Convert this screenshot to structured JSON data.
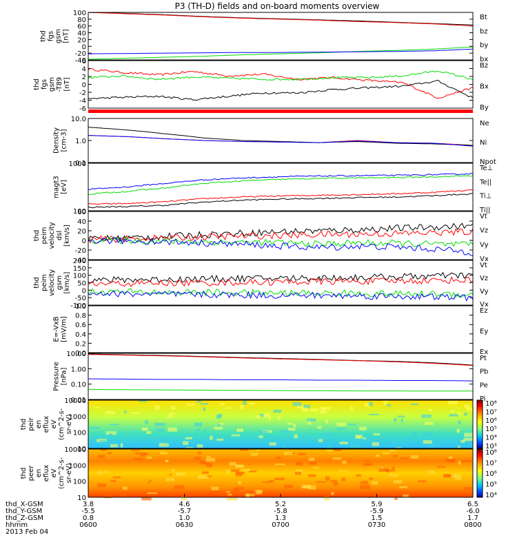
{
  "title": "P3 (TH-D) fields and on-board moments overview",
  "colors": {
    "black": "#000000",
    "red": "#ff0000",
    "green": "#00dd00",
    "blue": "#0000ff"
  },
  "chart_data": [
    {
      "type": "line",
      "ylabel": [
        "thd",
        "fgs",
        "gsm",
        "[nT]"
      ],
      "ylim": [
        -40,
        100
      ],
      "ticks": [
        "100",
        "80",
        "60",
        "40",
        "20",
        "0",
        "-20",
        "-40"
      ],
      "series": [
        {
          "name": "Bt",
          "color": "#000000",
          "values": [
            100,
            97,
            93,
            88,
            84,
            81,
            78,
            75,
            71,
            67,
            63
          ]
        },
        {
          "name": "bz",
          "color": "#ff0000",
          "values": [
            100,
            96,
            92,
            87,
            83,
            80,
            77,
            73,
            70,
            66,
            60
          ]
        },
        {
          "name": "by",
          "color": "#00dd00",
          "values": [
            -38,
            -35,
            -32,
            -29,
            -25,
            -22,
            -19,
            -15,
            -12,
            -8,
            -2
          ]
        },
        {
          "name": "bx",
          "color": "#0000ff",
          "values": [
            -22,
            -21,
            -20,
            -19,
            -18,
            -18,
            -17,
            -16,
            -15,
            -13,
            -8
          ]
        }
      ]
    },
    {
      "type": "line",
      "ylabel": [
        "thd",
        "fgs",
        "gsm",
        "-T89",
        "[nT]"
      ],
      "ylim": [
        -7,
        7
      ],
      "ticks": [
        "6",
        "4",
        "2",
        "0",
        "-2",
        "-4",
        "-6"
      ],
      "series": [
        {
          "name": "Bz",
          "color": "#ff0000",
          "values": [
            4.5,
            3.5,
            2.8,
            3.8,
            2.5,
            3.0,
            1.5,
            2.0,
            1.2,
            0.5,
            -4,
            -1
          ]
        },
        {
          "name": "Bx",
          "color": "#000000",
          "values": [
            -4.2,
            -3.8,
            -3.5,
            -4.5,
            -3.5,
            -2.5,
            -2.5,
            -1.5,
            -1.0,
            -0.5,
            1.0,
            -4
          ]
        },
        {
          "name": "By",
          "color": "#00dd00",
          "values": [
            2.0,
            2.5,
            1.5,
            2.2,
            1.8,
            1.5,
            1.5,
            2.0,
            2.0,
            2.5,
            4.0,
            1.5
          ]
        }
      ]
    },
    {
      "type": "line",
      "ylabel": [
        "Density",
        "[cm-3]"
      ],
      "log": true,
      "ylim": [
        0.1,
        10
      ],
      "ticks": [
        "10.0",
        "1.0",
        "0.1"
      ],
      "series": [
        {
          "name": "Ne",
          "color": "#ff0000",
          "values": [
            1.7,
            1.5,
            1.2,
            1.0,
            0.9,
            0.85,
            0.8,
            1.0,
            0.8,
            0.75,
            0.6
          ]
        },
        {
          "name": "Ni",
          "color": "#000000",
          "values": [
            4.0,
            3.0,
            2.0,
            1.3,
            1.0,
            0.9,
            0.8,
            0.9,
            0.75,
            0.7,
            0.6
          ]
        },
        {
          "name": "Npot",
          "color": "#0000ff",
          "values": [
            1.7,
            1.5,
            1.2,
            1.0,
            0.9,
            0.85,
            0.8,
            0.95,
            0.8,
            0.75,
            0.55
          ]
        }
      ]
    },
    {
      "type": "line",
      "ylabel": [
        "magt3",
        "[eV]"
      ],
      "log": true,
      "ylim": [
        100,
        10000
      ],
      "ticks": [
        "1000",
        "100"
      ],
      "series": [
        {
          "name": "Te⊥",
          "color": "#ff0000",
          "values": [
            190,
            200,
            240,
            320,
            380,
            420,
            450,
            480,
            520,
            600,
            750
          ]
        },
        {
          "name": "Te||",
          "color": "#000000",
          "values": [
            140,
            150,
            170,
            230,
            280,
            310,
            330,
            360,
            380,
            430,
            520
          ]
        },
        {
          "name": "Ti⊥",
          "color": "#0000ff",
          "values": [
            800,
            1000,
            1400,
            2000,
            2400,
            2700,
            2900,
            3000,
            3100,
            3300,
            3600
          ]
        },
        {
          "name": "Ti||",
          "color": "#00dd00",
          "values": [
            500,
            650,
            900,
            1400,
            1800,
            2100,
            2300,
            2400,
            2500,
            2700,
            3000
          ]
        }
      ]
    },
    {
      "type": "line",
      "ylabel": [
        "thd",
        "peim",
        "velocity",
        "dsl",
        "[km/s]"
      ],
      "ylim": [
        -40,
        60
      ],
      "ticks": [
        "60",
        "40",
        "20",
        "0",
        "-20",
        "-40"
      ],
      "series": [
        {
          "name": "Vt",
          "color": "#000000",
          "values": [
            3,
            5,
            8,
            12,
            15,
            18,
            20,
            22,
            25,
            28,
            30
          ]
        },
        {
          "name": "Vz",
          "color": "#ff0000",
          "values": [
            2,
            3,
            5,
            7,
            9,
            10,
            12,
            13,
            14,
            16,
            18
          ]
        },
        {
          "name": "Vy",
          "color": "#00dd00",
          "values": [
            0,
            0,
            -2,
            -3,
            -4,
            -5,
            -8,
            -5,
            -6,
            -8,
            -10
          ]
        },
        {
          "name": "Vx",
          "color": "#0000ff",
          "values": [
            0,
            -1,
            -3,
            -5,
            -8,
            -12,
            -15,
            -12,
            -14,
            -18,
            -25
          ]
        }
      ]
    },
    {
      "type": "line",
      "ylabel": [
        "thd",
        "peim",
        "velocity",
        "gsm",
        "[km/s]"
      ],
      "ylim": [
        -100,
        200
      ],
      "ticks": [
        "200",
        "150",
        "100",
        "50",
        "0",
        "-50",
        "-100"
      ],
      "series": [
        {
          "name": "Vt",
          "color": "#000000",
          "values": [
            65,
            70,
            72,
            75,
            78,
            80,
            82,
            85,
            90,
            95,
            100
          ]
        },
        {
          "name": "Vz",
          "color": "#ff0000",
          "values": [
            40,
            45,
            48,
            50,
            52,
            55,
            58,
            60,
            62,
            65,
            70
          ]
        },
        {
          "name": "Vy",
          "color": "#00dd00",
          "values": [
            -10,
            -12,
            -15,
            -15,
            -18,
            -20,
            -20,
            -22,
            -25,
            -25,
            -30
          ]
        },
        {
          "name": "Vx",
          "color": "#0000ff",
          "values": [
            -20,
            -25,
            -28,
            -30,
            -32,
            -35,
            -35,
            -38,
            -40,
            -45,
            -50
          ]
        }
      ]
    },
    {
      "type": "line",
      "ylabel": [
        "E=-VxB",
        "[mV/m]"
      ],
      "ylim": [
        0,
        1
      ],
      "ticks": [
        "1.0",
        "0.8",
        "0.6",
        "0.4",
        "0.2",
        "0.0"
      ],
      "series": [
        {
          "name": "Ez",
          "color": "#ff0000",
          "values": []
        },
        {
          "name": "Ey",
          "color": "#00dd00",
          "values": []
        },
        {
          "name": "Ex",
          "color": "#0000ff",
          "values": []
        }
      ]
    },
    {
      "type": "line",
      "ylabel": [
        "Pressure",
        "[nPa]"
      ],
      "log": true,
      "ylim": [
        0.01,
        10
      ],
      "ticks": [
        "10.00",
        "1.00",
        "0.10",
        "0.01"
      ],
      "series": [
        {
          "name": "Pt",
          "color": "#000000",
          "values": [
            9,
            8,
            7.2,
            6.2,
            5.3,
            4.6,
            4.0,
            3.4,
            3.0,
            2.4,
            1.7
          ]
        },
        {
          "name": "Pb",
          "color": "#ff0000",
          "values": [
            8.5,
            7.6,
            6.8,
            5.9,
            5.0,
            4.3,
            3.8,
            3.3,
            2.8,
            2.2,
            1.6
          ]
        },
        {
          "name": "Pe",
          "color": "#00dd00",
          "values": [
            0.045,
            0.043,
            0.042,
            0.04,
            0.039,
            0.038,
            0.037,
            0.036,
            0.036,
            0.035,
            0.035
          ]
        },
        {
          "name": "Pi",
          "color": "#0000ff",
          "values": [
            0.22,
            0.21,
            0.2,
            0.2,
            0.19,
            0.19,
            0.18,
            0.18,
            0.17,
            0.17,
            0.16
          ]
        }
      ]
    },
    {
      "type": "heatmap",
      "ylabel": [
        "thd",
        "peir",
        "en",
        "eflux",
        "eV",
        "(cm^2-s-",
        "sr-eV)"
      ],
      "log": true,
      "ylim": [
        10,
        10000
      ],
      "ticks": [
        "10000",
        "1000",
        "100",
        "10"
      ],
      "colorbar": [
        "10⁸",
        "10⁷",
        "10⁶",
        "10⁵",
        "10⁴",
        "10³"
      ]
    },
    {
      "type": "heatmap",
      "ylabel": [
        "thd",
        "peer",
        "en",
        "eflux",
        "eV",
        "(cm^2-s-",
        "sr-eV)"
      ],
      "log": true,
      "ylim": [
        10,
        10000
      ],
      "ticks": [
        "10000",
        "1000",
        "100",
        "10"
      ],
      "colorbar": [
        "10⁸",
        "10⁷",
        "10⁶",
        "10⁵",
        "10⁴"
      ]
    }
  ],
  "axis": {
    "rows": [
      "thd_X-GSM",
      "thd_Y-GSM",
      "thd_Z-GSM",
      "hhmm"
    ],
    "ticks": [
      [
        "3.8",
        "4.6",
        "5.2",
        "5.9",
        "6.5"
      ],
      [
        "-5.5",
        "-5.7",
        "-5.8",
        "-5.9",
        "-6.0"
      ],
      [
        "0.8",
        "1.0",
        "1.3",
        "1.5",
        "1.7"
      ],
      [
        "0600",
        "0630",
        "0700",
        "0730",
        "0800"
      ]
    ],
    "date": "2013 Feb 04"
  }
}
